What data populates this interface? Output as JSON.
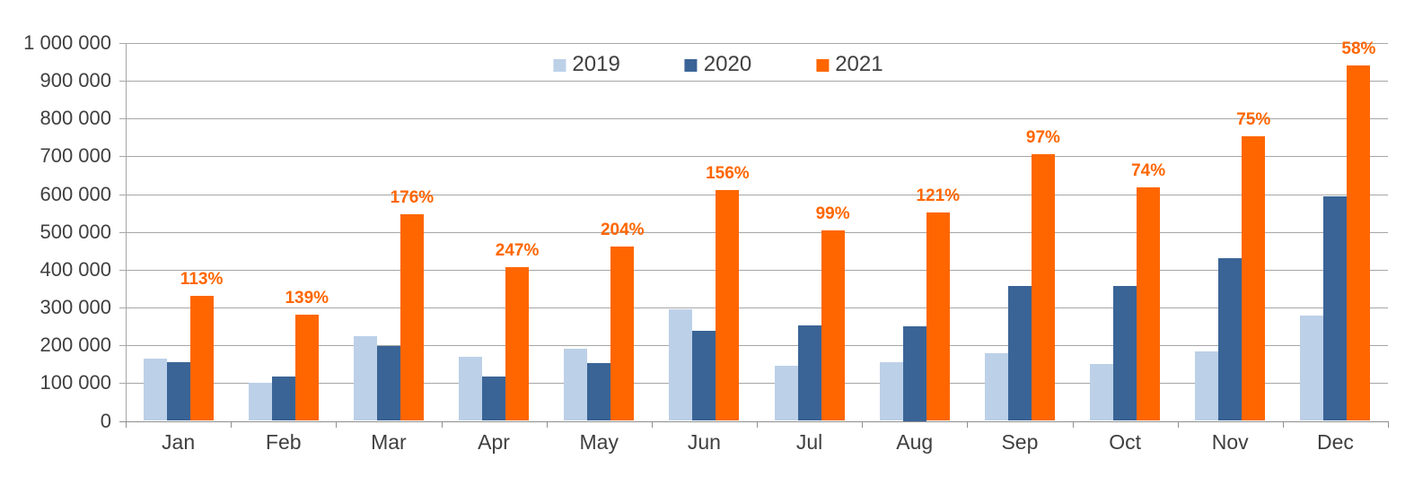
{
  "chart_data": {
    "type": "bar",
    "title": "",
    "xlabel": "",
    "ylabel": "",
    "categories": [
      "Jan",
      "Feb",
      "Mar",
      "Apr",
      "May",
      "Jun",
      "Jul",
      "Aug",
      "Sep",
      "Oct",
      "Nov",
      "Dec"
    ],
    "series": [
      {
        "name": "2019",
        "color": "#BCD0E8",
        "values": [
          165000,
          100000,
          225000,
          170000,
          190000,
          295000,
          145000,
          156000,
          180000,
          150000,
          183000,
          278000
        ]
      },
      {
        "name": "2020",
        "color": "#3A6496",
        "values": [
          155000,
          118000,
          198000,
          117000,
          152000,
          239000,
          253000,
          250000,
          358000,
          356000,
          430000,
          595000
        ]
      },
      {
        "name": "2021",
        "color": "#FF6600",
        "values": [
          330000,
          282000,
          547000,
          406000,
          462000,
          612000,
          503000,
          552000,
          705000,
          619000,
          753000,
          940000
        ],
        "bar_labels": [
          "113%",
          "139%",
          "176%",
          "247%",
          "204%",
          "156%",
          "99%",
          "121%",
          "97%",
          "74%",
          "75%",
          "58%"
        ]
      }
    ],
    "ylim": [
      0,
      1000000
    ],
    "ytick_step": 100000,
    "ytick_labels": [
      "0",
      "100 000",
      "200 000",
      "300 000",
      "400 000",
      "500 000",
      "600 000",
      "700 000",
      "800 000",
      "900 000",
      "1 000 000"
    ],
    "grid": true,
    "legend_position": "top-center",
    "bar_label_color": "#FF6600"
  },
  "colors": {
    "gridline": "#a6a6a6",
    "axis_line": "#8e8e8e",
    "axis_text": "#3f3f3f",
    "legend_text": "#404040",
    "background": "#ffffff"
  }
}
